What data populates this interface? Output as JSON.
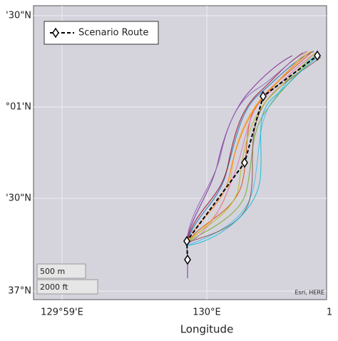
{
  "map": {
    "y_axis_labels": [
      "'30\"N",
      "°01'N",
      "'30\"N",
      "37°N"
    ],
    "x_axis_labels": [
      "129°59'E",
      "130°E",
      "1"
    ],
    "x_axis_title": "Longitude",
    "legend": {
      "label": "Scenario Route"
    },
    "scale_bar": [
      "500 m",
      "2000 ft"
    ],
    "attribution": "Esri, HERE"
  }
}
